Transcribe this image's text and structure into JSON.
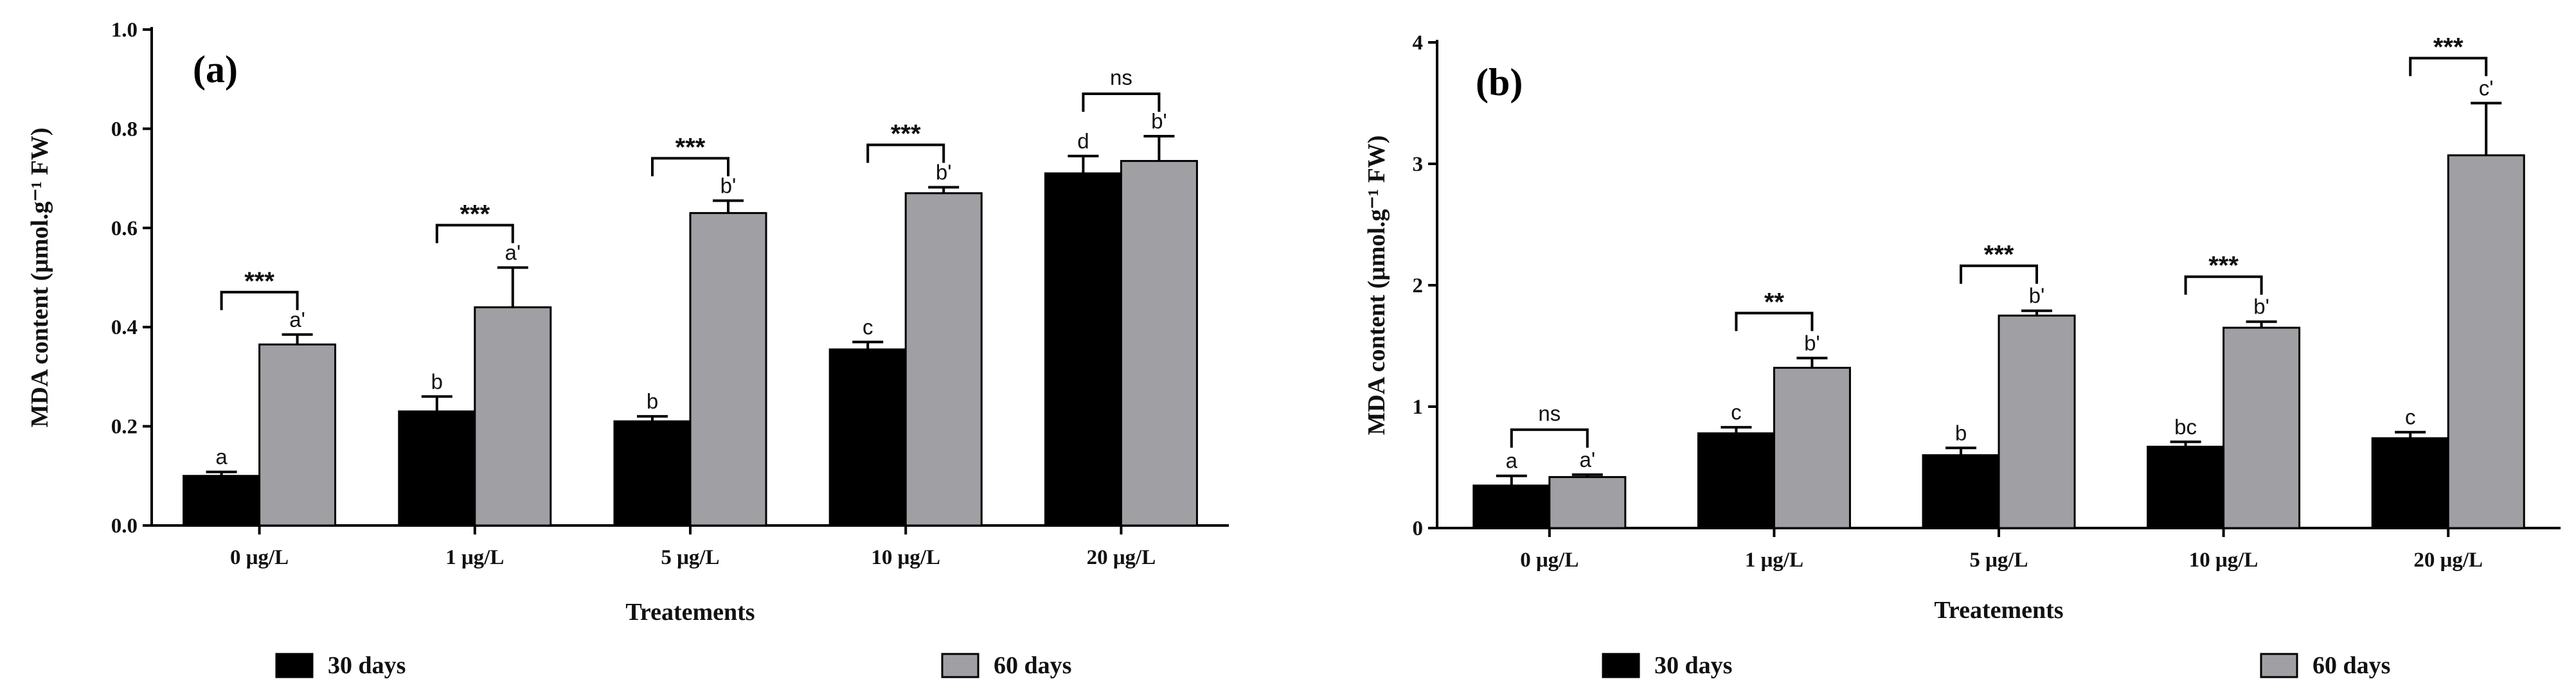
{
  "chart_data": [
    {
      "type": "bar",
      "panel_label": "(a)",
      "title": "",
      "xlabel": "Treatements",
      "ylabel": "MDA content (μmol.g⁻¹ FW)",
      "ylim": [
        0,
        1.0
      ],
      "yticks": [
        "0.0",
        "0.2",
        "0.4",
        "0.6",
        "0.8",
        "1.0"
      ],
      "categories": [
        "0 μg/L",
        "1 μg/L",
        "5 μg/L",
        "10 μg/L",
        "20 μg/L"
      ],
      "series": [
        {
          "name": "30 days",
          "color": "#000000",
          "values": [
            0.1,
            0.23,
            0.21,
            0.355,
            0.71
          ],
          "errors": [
            0.008,
            0.03,
            0.01,
            0.015,
            0.035
          ],
          "letters": [
            "a",
            "b",
            "b",
            "c",
            "d"
          ]
        },
        {
          "name": "60 days",
          "color": "#a0a0a4",
          "values": [
            0.365,
            0.44,
            0.63,
            0.67,
            0.735
          ],
          "errors": [
            0.02,
            0.08,
            0.025,
            0.012,
            0.05
          ],
          "letters": [
            "a'",
            "a'",
            "b'",
            "b'",
            "b'"
          ]
        }
      ],
      "significance": [
        "***",
        "***",
        "***",
        "***",
        "ns"
      ],
      "legend": [
        "30 days",
        "60 days"
      ]
    },
    {
      "type": "bar",
      "panel_label": "(b)",
      "title": "",
      "xlabel": "Treatements",
      "ylabel": "MDA content (μmol.g⁻¹ FW)",
      "ylim": [
        0,
        4
      ],
      "yticks": [
        "0",
        "1",
        "2",
        "3",
        "4"
      ],
      "categories": [
        "0 μg/L",
        "1 μg/L",
        "5 μg/L",
        "10 μg/L",
        "20 μg/L"
      ],
      "series": [
        {
          "name": "30 days",
          "color": "#000000",
          "values": [
            0.35,
            0.78,
            0.6,
            0.67,
            0.74
          ],
          "errors": [
            0.08,
            0.05,
            0.06,
            0.04,
            0.05
          ],
          "letters": [
            "a",
            "c",
            "b",
            "bc",
            "c"
          ]
        },
        {
          "name": "60 days",
          "color": "#a0a0a4",
          "values": [
            0.42,
            1.32,
            1.75,
            1.65,
            3.07
          ],
          "errors": [
            0.02,
            0.08,
            0.04,
            0.05,
            0.43
          ],
          "letters": [
            "a'",
            "b'",
            "b'",
            "b'",
            "c'"
          ]
        }
      ],
      "significance": [
        "ns",
        "**",
        "***",
        "***",
        "***"
      ],
      "legend": [
        "30 days",
        "60 days"
      ]
    }
  ]
}
